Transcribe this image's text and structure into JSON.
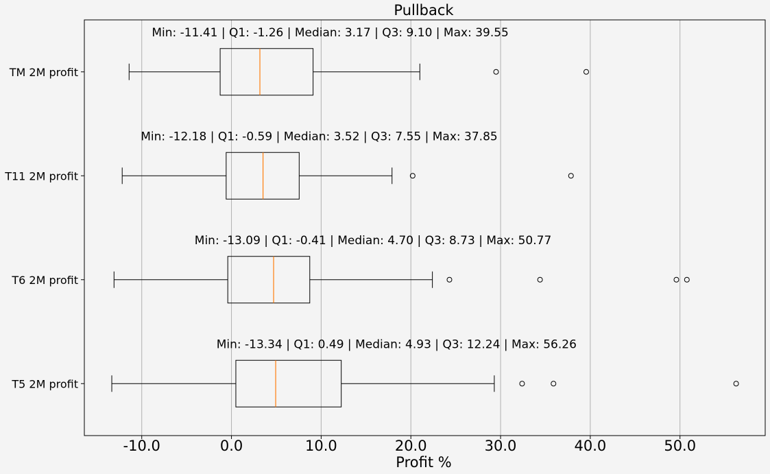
{
  "chart_data": {
    "type": "boxplot",
    "title": "Pullback",
    "xlabel": "Profit %",
    "ylabel": "",
    "xlim": [
      -16.4,
      59.5
    ],
    "xticks": [
      -10,
      0,
      10,
      20,
      30,
      40,
      50
    ],
    "xtick_labels": [
      "-10.0",
      "0.0",
      "10.0",
      "20.0",
      "30.0",
      "40.0",
      "50.0"
    ],
    "grid": "vertical",
    "series": [
      {
        "name": "TM 2M profit",
        "whisker_low": -11.41,
        "q1": -1.26,
        "median": 3.17,
        "q3": 9.1,
        "whisker_high": 21.0,
        "outliers": [
          29.5,
          39.55
        ],
        "annotation": "Min: -11.41 | Q1: -1.26 | Median: 3.17 | Q3: 9.10 | Max: 39.55"
      },
      {
        "name": "T11 2M profit",
        "whisker_low": -12.18,
        "q1": -0.59,
        "median": 3.52,
        "q3": 7.55,
        "whisker_high": 17.9,
        "outliers": [
          20.2,
          37.85
        ],
        "annotation": "Min: -12.18 | Q1: -0.59 | Median: 3.52 | Q3: 7.55 | Max: 37.85"
      },
      {
        "name": "T6 2M profit",
        "whisker_low": -13.09,
        "q1": -0.41,
        "median": 4.7,
        "q3": 8.73,
        "whisker_high": 22.4,
        "outliers": [
          24.3,
          34.4,
          49.6,
          50.77
        ],
        "annotation": "Min: -13.09 | Q1: -0.41 | Median: 4.70 | Q3: 8.73 | Max: 50.77"
      },
      {
        "name": "T5 2M profit",
        "whisker_low": -13.34,
        "q1": 0.49,
        "median": 4.93,
        "q3": 12.24,
        "whisker_high": 29.3,
        "outliers": [
          32.4,
          35.9,
          56.26
        ],
        "annotation": "Min: -13.34 | Q1: 0.49 | Median: 4.93 | Q3: 12.24 | Max: 56.26"
      }
    ]
  }
}
